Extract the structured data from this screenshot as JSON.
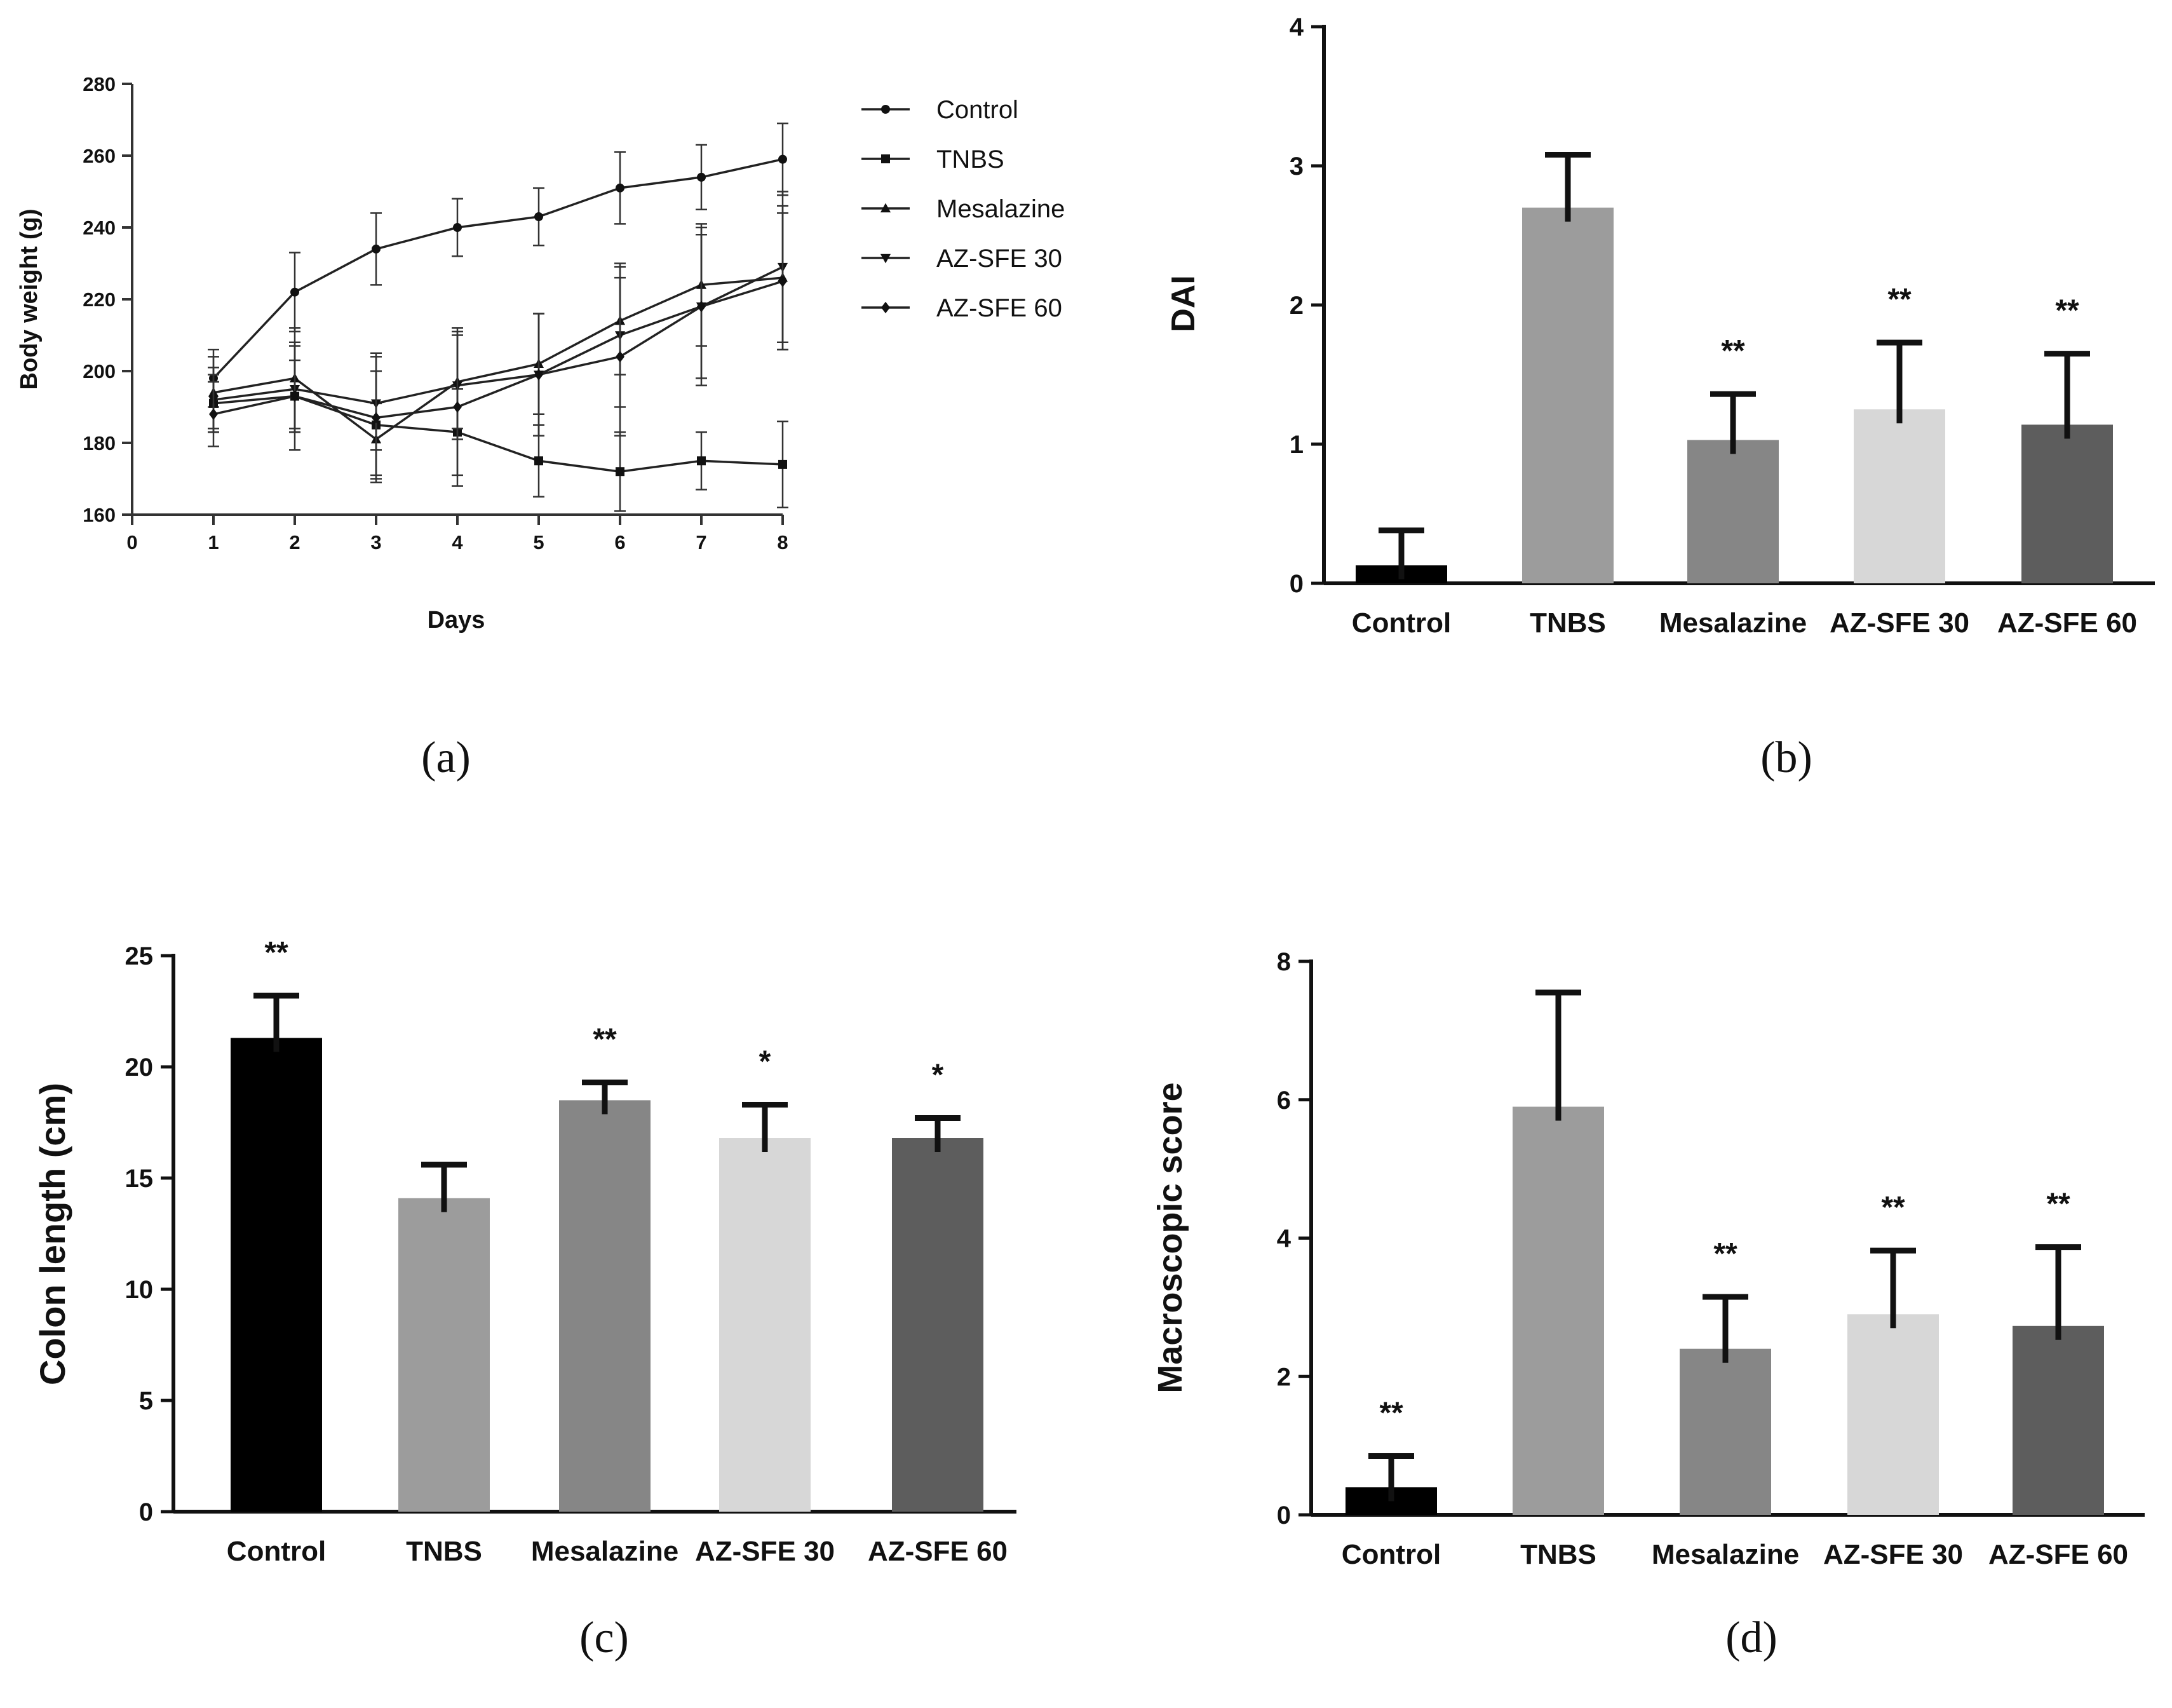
{
  "figure_labels": [
    "(a)",
    "(b)",
    "(c)",
    "(d)"
  ],
  "colors": {
    "Control": "#000000",
    "TNBS": "#9c9c9c",
    "Mesalazine": "#868686",
    "AZ-SFE 30": "#d7d7d7",
    "AZ-SFE 60": "#5d5d5d"
  },
  "chart_data": [
    {
      "id": "a",
      "type": "line",
      "title": "",
      "xlabel": "Days",
      "ylabel": "Body weight (g)",
      "xlim": [
        0,
        8
      ],
      "ylim": [
        160,
        280
      ],
      "xticks": [
        0,
        1,
        2,
        3,
        4,
        5,
        6,
        7,
        8
      ],
      "yticks": [
        160,
        180,
        200,
        220,
        240,
        260,
        280
      ],
      "grid": false,
      "legend": "right",
      "x": [
        1,
        2,
        3,
        4,
        5,
        6,
        7,
        8
      ],
      "series": [
        {
          "name": "Control",
          "marker": "circle",
          "values": [
            198,
            222,
            234,
            240,
            243,
            251,
            254,
            259
          ],
          "errors": [
            8,
            11,
            10,
            8,
            8,
            10,
            9,
            10
          ]
        },
        {
          "name": "TNBS",
          "marker": "square",
          "values": [
            191,
            193,
            185,
            183,
            175,
            172,
            175,
            174
          ],
          "errors": [
            8,
            10,
            15,
            12,
            10,
            11,
            8,
            12
          ]
        },
        {
          "name": "Mesalazine",
          "marker": "triangle-up",
          "values": [
            194,
            198,
            181,
            197,
            202,
            214,
            224,
            226
          ],
          "errors": [
            10,
            14,
            10,
            13,
            14,
            15,
            17,
            20
          ]
        },
        {
          "name": "AZ-SFE 30",
          "marker": "triangle-down",
          "values": [
            192,
            195,
            191,
            196,
            199,
            210,
            218,
            229
          ],
          "errors": [
            9,
            12,
            13,
            15,
            17,
            20,
            22,
            21
          ]
        },
        {
          "name": "AZ-SFE 60",
          "marker": "diamond",
          "values": [
            188,
            193,
            187,
            190,
            199,
            204,
            218,
            225
          ],
          "errors": [
            9,
            15,
            18,
            22,
            17,
            22,
            20,
            19
          ]
        }
      ]
    },
    {
      "id": "b",
      "type": "bar",
      "title": "",
      "xlabel": "",
      "ylabel": "DAI",
      "ylim": [
        0,
        4
      ],
      "yticks": [
        0,
        1,
        2,
        3,
        4
      ],
      "grid": false,
      "categories": [
        "Control",
        "TNBS",
        "Mesalazine",
        "AZ-SFE 30",
        "AZ-SFE 60"
      ],
      "values": [
        0.13,
        2.7,
        1.03,
        1.25,
        1.14
      ],
      "errors": [
        0.25,
        0.38,
        0.33,
        0.48,
        0.51
      ],
      "significance": [
        "",
        "",
        "**",
        "**",
        "**"
      ]
    },
    {
      "id": "c",
      "type": "bar",
      "title": "",
      "xlabel": "",
      "ylabel": "Colon length (cm)",
      "ylim": [
        0,
        25
      ],
      "yticks": [
        0,
        5,
        10,
        15,
        20,
        25
      ],
      "grid": false,
      "categories": [
        "Control",
        "TNBS",
        "Mesalazine",
        "AZ-SFE 30",
        "AZ-SFE 60"
      ],
      "values": [
        21.3,
        14.1,
        18.5,
        16.8,
        16.8
      ],
      "errors": [
        1.9,
        1.5,
        0.8,
        1.5,
        0.9
      ],
      "significance": [
        "**",
        "",
        "**",
        "*",
        "*"
      ]
    },
    {
      "id": "d",
      "type": "bar",
      "title": "",
      "xlabel": "",
      "ylabel": "Macroscopic score",
      "ylim": [
        0,
        8
      ],
      "yticks": [
        0,
        2,
        4,
        6,
        8
      ],
      "grid": false,
      "categories": [
        "Control",
        "TNBS",
        "Mesalazine",
        "AZ-SFE 30",
        "AZ-SFE 60"
      ],
      "values": [
        0.4,
        5.9,
        2.4,
        2.9,
        2.73
      ],
      "errors": [
        0.45,
        1.65,
        0.75,
        0.92,
        1.14
      ],
      "significance": [
        "**",
        "",
        "**",
        "**",
        "**"
      ]
    }
  ]
}
